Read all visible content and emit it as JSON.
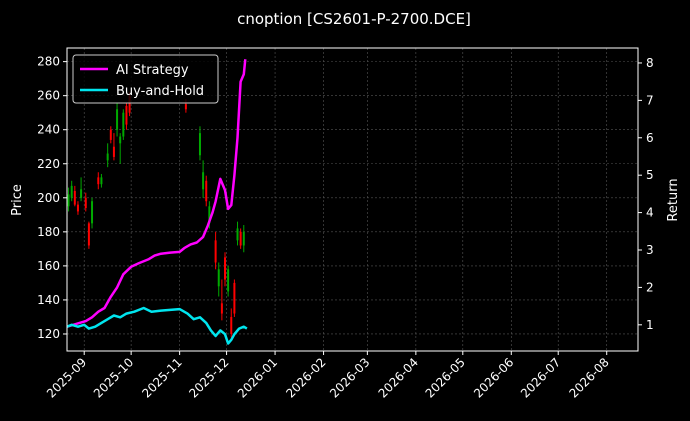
{
  "chart_data": {
    "type": "line",
    "title": "cnoption [CS2601-P-2700.DCE]",
    "xlabel": "",
    "ylabel": "Price",
    "y2label": "Return",
    "xlim": [
      "2025-08-21",
      "2026-08-21"
    ],
    "ylim": [
      110,
      288
    ],
    "y2lim": [
      0.3,
      8.4
    ],
    "x_ticks": [
      "2025-09",
      "2025-10",
      "2025-11",
      "2025-12",
      "2026-01",
      "2026-02",
      "2026-03",
      "2026-04",
      "2026-05",
      "2026-06",
      "2026-07",
      "2026-08"
    ],
    "y_ticks": [
      120,
      140,
      160,
      180,
      200,
      220,
      240,
      260,
      280
    ],
    "y2_ticks": [
      1,
      2,
      3,
      4,
      5,
      6,
      7,
      8
    ],
    "grid": true,
    "legend": "top-left",
    "colors": {
      "up": "#00aa00",
      "down": "#ff0000",
      "strategy": "#ff00ff",
      "buyhold": "#00e5ee"
    },
    "series": [
      {
        "name": "AI Strategy",
        "axis": "right",
        "color": "#ff00ff",
        "points": [
          [
            "2025-08-21",
            0.95
          ],
          [
            "2025-08-25",
            1.0
          ],
          [
            "2025-08-29",
            1.05
          ],
          [
            "2025-09-02",
            1.1
          ],
          [
            "2025-09-06",
            1.2
          ],
          [
            "2025-09-10",
            1.35
          ],
          [
            "2025-09-14",
            1.45
          ],
          [
            "2025-09-18",
            1.75
          ],
          [
            "2025-09-22",
            2.0
          ],
          [
            "2025-09-26",
            2.35
          ],
          [
            "2025-10-01",
            2.55
          ],
          [
            "2025-10-06",
            2.65
          ],
          [
            "2025-10-12",
            2.75
          ],
          [
            "2025-10-16",
            2.85
          ],
          [
            "2025-10-20",
            2.9
          ],
          [
            "2025-10-26",
            2.93
          ],
          [
            "2025-11-01",
            2.95
          ],
          [
            "2025-11-04",
            3.05
          ],
          [
            "2025-11-08",
            3.15
          ],
          [
            "2025-11-12",
            3.2
          ],
          [
            "2025-11-16",
            3.35
          ],
          [
            "2025-11-19",
            3.65
          ],
          [
            "2025-11-22",
            4.0
          ],
          [
            "2025-11-24",
            4.3
          ],
          [
            "2025-11-27",
            4.9
          ],
          [
            "2025-11-30",
            4.6
          ],
          [
            "2025-12-02",
            4.1
          ],
          [
            "2025-12-04",
            4.2
          ],
          [
            "2025-12-06",
            5.0
          ],
          [
            "2025-12-08",
            6.0
          ],
          [
            "2025-12-10",
            7.5
          ],
          [
            "2025-12-12",
            7.7
          ],
          [
            "2025-12-13",
            8.1
          ]
        ]
      },
      {
        "name": "Buy-and-Hold",
        "axis": "right",
        "color": "#00e5ee",
        "points": [
          [
            "2025-08-21",
            0.95
          ],
          [
            "2025-08-24",
            1.0
          ],
          [
            "2025-08-28",
            0.95
          ],
          [
            "2025-09-01",
            1.0
          ],
          [
            "2025-09-04",
            0.9
          ],
          [
            "2025-09-08",
            0.95
          ],
          [
            "2025-09-12",
            1.05
          ],
          [
            "2025-09-16",
            1.15
          ],
          [
            "2025-09-20",
            1.25
          ],
          [
            "2025-09-24",
            1.2
          ],
          [
            "2025-09-28",
            1.3
          ],
          [
            "2025-10-03",
            1.35
          ],
          [
            "2025-10-09",
            1.45
          ],
          [
            "2025-10-14",
            1.35
          ],
          [
            "2025-10-20",
            1.38
          ],
          [
            "2025-10-26",
            1.4
          ],
          [
            "2025-11-01",
            1.42
          ],
          [
            "2025-11-06",
            1.3
          ],
          [
            "2025-11-10",
            1.15
          ],
          [
            "2025-11-14",
            1.2
          ],
          [
            "2025-11-18",
            1.05
          ],
          [
            "2025-11-21",
            0.85
          ],
          [
            "2025-11-24",
            0.7
          ],
          [
            "2025-11-27",
            0.85
          ],
          [
            "2025-11-30",
            0.75
          ],
          [
            "2025-12-02",
            0.5
          ],
          [
            "2025-12-04",
            0.6
          ],
          [
            "2025-12-06",
            0.75
          ],
          [
            "2025-12-09",
            0.9
          ],
          [
            "2025-12-12",
            0.95
          ],
          [
            "2025-12-14",
            0.9
          ]
        ]
      }
    ],
    "candles": [
      {
        "date": "2025-08-22",
        "open": 195,
        "high": 206,
        "low": 192,
        "close": 202
      },
      {
        "date": "2025-08-24",
        "open": 200,
        "high": 210,
        "low": 198,
        "close": 207
      },
      {
        "date": "2025-08-26",
        "open": 204,
        "high": 207,
        "low": 195,
        "close": 196
      },
      {
        "date": "2025-08-28",
        "open": 196,
        "high": 198,
        "low": 190,
        "close": 192
      },
      {
        "date": "2025-08-30",
        "open": 200,
        "high": 212,
        "low": 198,
        "close": 205
      },
      {
        "date": "2025-09-02",
        "open": 200,
        "high": 203,
        "low": 192,
        "close": 194
      },
      {
        "date": "2025-09-04",
        "open": 185,
        "high": 186,
        "low": 170,
        "close": 172
      },
      {
        "date": "2025-09-06",
        "open": 185,
        "high": 200,
        "low": 182,
        "close": 198
      },
      {
        "date": "2025-09-10",
        "open": 212,
        "high": 215,
        "low": 205,
        "close": 208
      },
      {
        "date": "2025-09-12",
        "open": 208,
        "high": 214,
        "low": 206,
        "close": 212
      },
      {
        "date": "2025-09-16",
        "open": 222,
        "high": 232,
        "low": 218,
        "close": 226
      },
      {
        "date": "2025-09-18",
        "open": 240,
        "high": 242,
        "low": 232,
        "close": 234
      },
      {
        "date": "2025-09-20",
        "open": 230,
        "high": 238,
        "low": 222,
        "close": 224
      },
      {
        "date": "2025-09-22",
        "open": 240,
        "high": 256,
        "low": 236,
        "close": 252
      },
      {
        "date": "2025-09-24",
        "open": 232,
        "high": 238,
        "low": 220,
        "close": 236
      },
      {
        "date": "2025-09-26",
        "open": 236,
        "high": 252,
        "low": 234,
        "close": 250
      },
      {
        "date": "2025-09-28",
        "open": 254,
        "high": 256,
        "low": 240,
        "close": 243
      },
      {
        "date": "2025-09-30",
        "open": 260,
        "high": 262,
        "low": 248,
        "close": 250
      },
      {
        "date": "2025-11-05",
        "open": 255,
        "high": 258,
        "low": 250,
        "close": 252
      },
      {
        "date": "2025-11-14",
        "open": 225,
        "high": 242,
        "low": 222,
        "close": 238
      },
      {
        "date": "2025-11-16",
        "open": 205,
        "high": 222,
        "low": 200,
        "close": 215
      },
      {
        "date": "2025-11-18",
        "open": 210,
        "high": 213,
        "low": 195,
        "close": 198
      },
      {
        "date": "2025-11-20",
        "open": 185,
        "high": 198,
        "low": 182,
        "close": 195
      },
      {
        "date": "2025-11-24",
        "open": 175,
        "high": 180,
        "low": 158,
        "close": 162
      },
      {
        "date": "2025-11-26",
        "open": 148,
        "high": 162,
        "low": 142,
        "close": 158
      },
      {
        "date": "2025-11-28",
        "open": 138,
        "high": 152,
        "low": 128,
        "close": 132
      },
      {
        "date": "2025-11-30",
        "open": 165,
        "high": 168,
        "low": 148,
        "close": 152
      },
      {
        "date": "2025-12-02",
        "open": 145,
        "high": 160,
        "low": 142,
        "close": 158
      },
      {
        "date": "2025-12-04",
        "open": 130,
        "high": 135,
        "low": 118,
        "close": 120
      },
      {
        "date": "2025-12-06",
        "open": 150,
        "high": 152,
        "low": 130,
        "close": 132
      },
      {
        "date": "2025-12-08",
        "open": 175,
        "high": 186,
        "low": 172,
        "close": 182
      },
      {
        "date": "2025-12-10",
        "open": 180,
        "high": 182,
        "low": 170,
        "close": 172
      },
      {
        "date": "2025-12-12",
        "open": 172,
        "high": 184,
        "low": 168,
        "close": 180
      }
    ]
  }
}
